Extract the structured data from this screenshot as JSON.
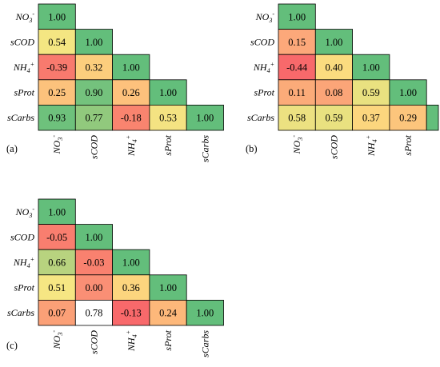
{
  "chart_data": [
    {
      "type": "heatmap",
      "panel_label": "(a)",
      "variables": [
        "NO3-",
        "sCOD",
        "NH4+",
        "sProt",
        "sCarbs"
      ],
      "row_labels": [
        "NO3-",
        "sCOD",
        "NH4+",
        "sProt",
        "sCarbs"
      ],
      "column_labels": [
        "NO3-",
        "sCOD",
        "NH4+",
        "sProt",
        "sCarbs"
      ],
      "matrix": [
        [
          "1.00"
        ],
        [
          "0.54",
          "1.00"
        ],
        [
          "-0.39",
          "0.32",
          "1.00"
        ],
        [
          "0.25",
          "0.90",
          "0.26",
          "1.00"
        ],
        [
          "0.93",
          "0.77",
          "-0.18",
          "0.53",
          "1.00"
        ]
      ]
    },
    {
      "type": "heatmap",
      "panel_label": "(b)",
      "variables": [
        "NO3-",
        "sCOD",
        "NH4+",
        "sProt",
        "sCarbs"
      ],
      "row_labels": [
        "NO3-",
        "sCOD",
        "NH4+",
        "sProt",
        "sCarbs"
      ],
      "column_labels": [
        "NO3-",
        "sCOD",
        "NH4+",
        "sProt"
      ],
      "matrix": [
        [
          "1.00"
        ],
        [
          "0.15",
          "1.00"
        ],
        [
          "-0.44",
          "0.40",
          "1.00"
        ],
        [
          "0.11",
          "0.08",
          "0.59",
          "1.00"
        ],
        [
          "0.58",
          "0.59",
          "0.37",
          "0.29",
          ""
        ]
      ]
    },
    {
      "type": "heatmap",
      "panel_label": "(c)",
      "variables": [
        "NO3-",
        "sCOD",
        "NH4+",
        "sProt",
        "sCarbs"
      ],
      "row_labels": [
        "NO3-",
        "sCOD",
        "NH4+",
        "sProt",
        "sCarbs"
      ],
      "column_labels": [
        "NO3-",
        "sCOD",
        "NH4+",
        "sProt",
        "sCarbs"
      ],
      "matrix": [
        [
          "1.00"
        ],
        [
          "-0.05",
          "1.00"
        ],
        [
          "0.66",
          "-0.03",
          "1.00"
        ],
        [
          "0.51",
          "0.00",
          "0.36",
          "1.00"
        ],
        [
          "0.07",
          "0.78",
          "-0.13",
          "0.24",
          "1.00"
        ]
      ]
    }
  ],
  "colors": {
    "cell_fill": {
      "1.00": "#63be7b",
      "0.93": "#6ec17c",
      "0.90": "#74c27d",
      "0.77": "#91c97d",
      "0.66": "#b8d37f",
      "0.59": "#e9e180",
      "0.58": "#ece181",
      "0.54": "#f4e682",
      "0.53": "#f4e382",
      "0.51": "#f6e683",
      "0.40": "#fbdc7f",
      "0.37": "#fcd67e",
      "0.36": "#fcd57e",
      "0.32": "#fcce7d",
      "0.29": "#fcc57c",
      "0.26": "#fdc17c",
      "0.25": "#fcc27c",
      "0.24": "#fdb87a",
      "0.15": "#fca87a",
      "0.11": "#fbab79",
      "0.08": "#fba578",
      "0.07": "#fba077",
      "0.00": "#fa8f75",
      "-0.03": "#f9816f",
      "-0.05": "#f97e6f",
      "-0.13": "#f8696b",
      "-0.18": "#f9846f",
      "-0.39": "#f87a6e",
      "-0.44": "#f8696b"
    },
    "border": "#000000"
  }
}
